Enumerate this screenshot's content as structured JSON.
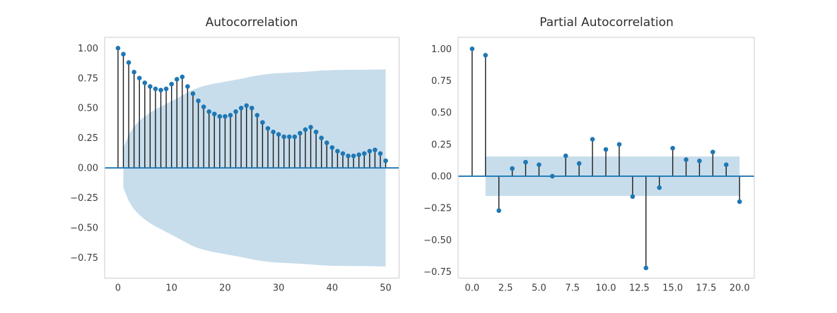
{
  "colors": {
    "marker": "#1f77b4",
    "stem": "#1c1c1c",
    "zero_line": "#1f77b4",
    "band_fill": "#1f77b4",
    "band_opacity": 0.25,
    "spine": "#cccccc",
    "tick_label": "#3d3d3d",
    "title": "#2e2e2e",
    "background": "#ffffff"
  },
  "chart_data": [
    {
      "type": "stem",
      "title": "Autocorrelation",
      "xlabel": "",
      "ylabel": "",
      "grid": false,
      "legend": null,
      "xlim": [
        -2.5,
        52.5
      ],
      "ylim": [
        -0.92,
        1.09
      ],
      "xtick_values": [
        0,
        10,
        20,
        30,
        40,
        50
      ],
      "xtick_labels": [
        "0",
        "10",
        "20",
        "30",
        "40",
        "50"
      ],
      "ytick_values": [
        1.0,
        0.75,
        0.5,
        0.25,
        0.0,
        -0.25,
        -0.5,
        -0.75
      ],
      "ytick_labels": [
        "1.00",
        "0.75",
        "0.50",
        "0.25",
        "0.00",
        "−0.25",
        "−0.50",
        "−0.75"
      ],
      "lags": [
        0,
        1,
        2,
        3,
        4,
        5,
        6,
        7,
        8,
        9,
        10,
        11,
        12,
        13,
        14,
        15,
        16,
        17,
        18,
        19,
        20,
        21,
        22,
        23,
        24,
        25,
        26,
        27,
        28,
        29,
        30,
        31,
        32,
        33,
        34,
        35,
        36,
        37,
        38,
        39,
        40,
        41,
        42,
        43,
        44,
        45,
        46,
        47,
        48,
        49,
        50
      ],
      "values": [
        1.0,
        0.95,
        0.88,
        0.8,
        0.75,
        0.71,
        0.68,
        0.66,
        0.65,
        0.66,
        0.7,
        0.74,
        0.76,
        0.68,
        0.62,
        0.56,
        0.51,
        0.47,
        0.45,
        0.43,
        0.43,
        0.44,
        0.47,
        0.5,
        0.52,
        0.5,
        0.44,
        0.38,
        0.33,
        0.3,
        0.28,
        0.26,
        0.26,
        0.26,
        0.29,
        0.32,
        0.34,
        0.3,
        0.25,
        0.21,
        0.17,
        0.14,
        0.12,
        0.1,
        0.1,
        0.11,
        0.12,
        0.14,
        0.15,
        0.12,
        0.06
      ],
      "conf_band": {
        "shape": "cone",
        "symmetric": true,
        "lag_start": 1,
        "upper": [
          0.166,
          0.277,
          0.346,
          0.393,
          0.43,
          0.462,
          0.489,
          0.512,
          0.535,
          0.557,
          0.581,
          0.605,
          0.631,
          0.653,
          0.67,
          0.683,
          0.694,
          0.704,
          0.712,
          0.72,
          0.728,
          0.736,
          0.744,
          0.754,
          0.763,
          0.771,
          0.778,
          0.784,
          0.788,
          0.791,
          0.793,
          0.796,
          0.798,
          0.8,
          0.803,
          0.806,
          0.81,
          0.813,
          0.815,
          0.817,
          0.818,
          0.818,
          0.819,
          0.819,
          0.82,
          0.82,
          0.821,
          0.821,
          0.822,
          0.823
        ]
      }
    },
    {
      "type": "stem",
      "title": "Partial Autocorrelation",
      "xlabel": "",
      "ylabel": "",
      "grid": false,
      "legend": null,
      "xlim": [
        -1.05,
        21.1
      ],
      "ylim": [
        -0.8,
        1.09
      ],
      "xtick_values": [
        0,
        2.5,
        5,
        7.5,
        10,
        12.5,
        15,
        17.5,
        20
      ],
      "xtick_labels": [
        "0.0",
        "2.5",
        "5.0",
        "7.5",
        "10.0",
        "12.5",
        "15.0",
        "17.5",
        "20.0"
      ],
      "ytick_values": [
        1.0,
        0.75,
        0.5,
        0.25,
        0.0,
        -0.25,
        -0.5,
        -0.75
      ],
      "ytick_labels": [
        "1.00",
        "0.75",
        "0.50",
        "0.25",
        "0.00",
        "−0.25",
        "−0.50",
        "−0.75"
      ],
      "lags": [
        0,
        1,
        2,
        3,
        4,
        5,
        6,
        7,
        8,
        9,
        10,
        11,
        12,
        13,
        14,
        15,
        16,
        17,
        18,
        19,
        20
      ],
      "values": [
        1.0,
        0.95,
        -0.27,
        0.06,
        0.11,
        0.09,
        0.0,
        0.16,
        0.1,
        0.29,
        0.21,
        0.25,
        -0.16,
        -0.72,
        -0.09,
        0.22,
        0.13,
        0.12,
        0.19,
        0.09,
        -0.2
      ],
      "conf_band": {
        "shape": "rect",
        "symmetric": true,
        "lag_start": 1,
        "lag_end": 20,
        "half_width": 0.155
      }
    }
  ]
}
